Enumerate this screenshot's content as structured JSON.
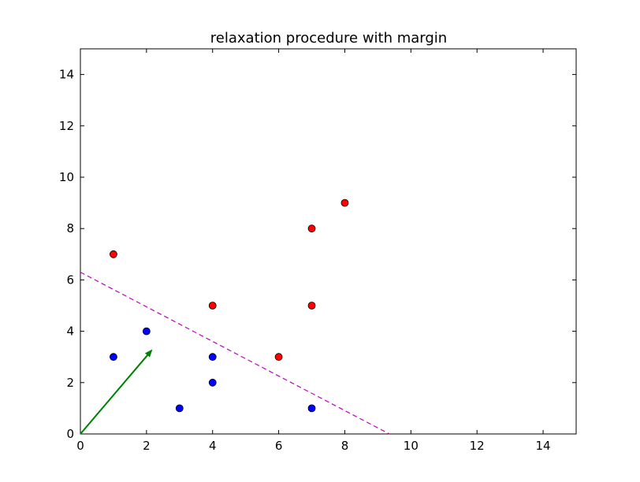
{
  "chart_data": {
    "type": "scatter",
    "title": "relaxation procedure with margin",
    "xlabel": "",
    "ylabel": "",
    "xlim": [
      0,
      15
    ],
    "ylim": [
      0,
      15
    ],
    "xticks": [
      0,
      2,
      4,
      6,
      8,
      10,
      12,
      14
    ],
    "yticks": [
      0,
      2,
      4,
      6,
      8,
      10,
      12,
      14
    ],
    "grid": false,
    "series": [
      {
        "color": "#ff0000",
        "points": [
          [
            1,
            7
          ],
          [
            4,
            5
          ],
          [
            6,
            3
          ],
          [
            7,
            8
          ],
          [
            7,
            5
          ],
          [
            8,
            9
          ]
        ]
      },
      {
        "color": "#0000ff",
        "points": [
          [
            1,
            3
          ],
          [
            2,
            4
          ],
          [
            3,
            1
          ],
          [
            4,
            3
          ],
          [
            4,
            2
          ],
          [
            7,
            1
          ]
        ]
      }
    ],
    "decision_boundary": {
      "style": "dashed",
      "color": "#bf00bf",
      "from": [
        0,
        6.3
      ],
      "to": [
        9.35,
        0
      ]
    },
    "weight_vector": {
      "color": "#008000",
      "from": [
        0,
        0
      ],
      "to": [
        2.15,
        3.25
      ]
    }
  }
}
